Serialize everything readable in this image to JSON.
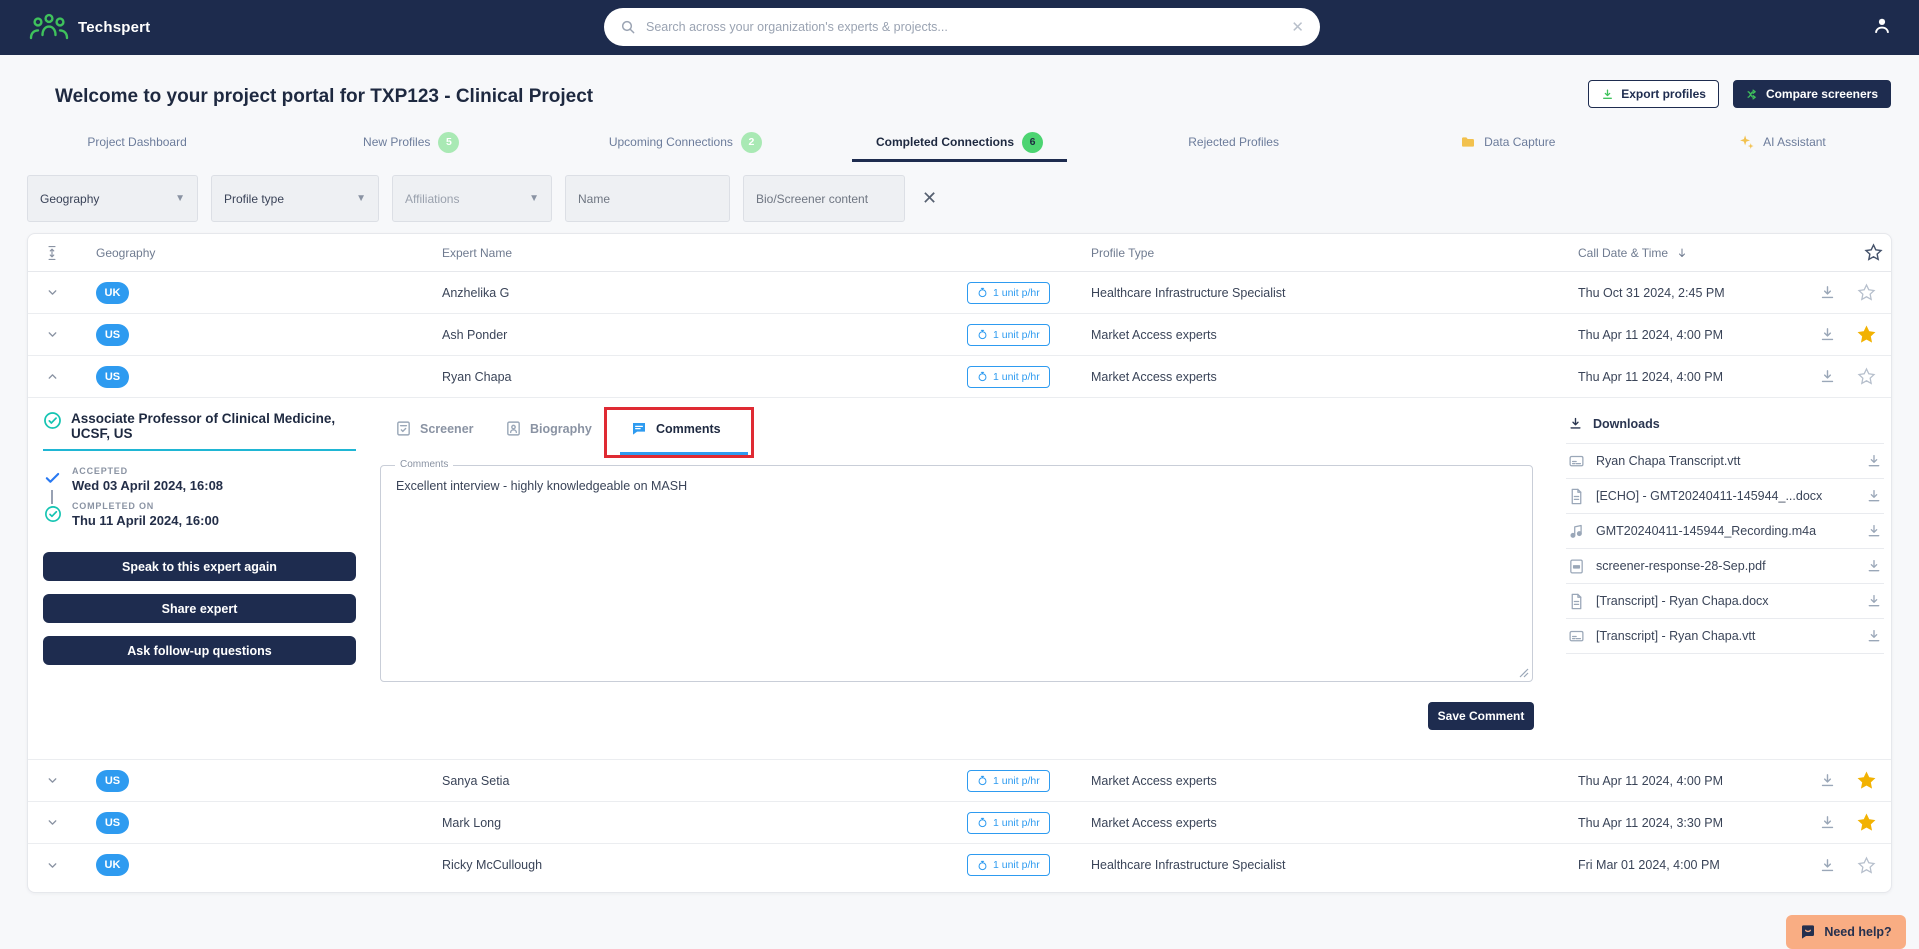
{
  "header": {
    "brand": "Techspert",
    "search_placeholder": "Search across your organization's experts & projects..."
  },
  "page": {
    "title": "Welcome to your project portal for TXP123 - Clinical Project",
    "export_button": "Export profiles",
    "compare_button": "Compare screeners"
  },
  "tabs": [
    {
      "label": "Project Dashboard",
      "badge": null,
      "badge_style": null,
      "icon": null,
      "active": false
    },
    {
      "label": "New Profiles",
      "badge": "5",
      "badge_style": "light",
      "icon": null,
      "active": false
    },
    {
      "label": "Upcoming Connections",
      "badge": "2",
      "badge_style": "light",
      "icon": null,
      "active": false
    },
    {
      "label": "Completed Connections",
      "badge": "6",
      "badge_style": "solid",
      "icon": null,
      "active": true
    },
    {
      "label": "Rejected Profiles",
      "badge": null,
      "badge_style": null,
      "icon": null,
      "active": false
    },
    {
      "label": "Data Capture",
      "badge": null,
      "badge_style": null,
      "icon": "folder-icon",
      "active": false
    },
    {
      "label": "AI Assistant",
      "badge": null,
      "badge_style": null,
      "icon": "sparkle-icon",
      "active": false
    }
  ],
  "filters": {
    "geography_value": "Geography",
    "profile_type_value": "Profile type",
    "affiliations_placeholder": "Affiliations",
    "name_placeholder": "Name",
    "bio_placeholder": "Bio/Screener content"
  },
  "table": {
    "columns": [
      "Geography",
      "Expert Name",
      "Profile Type",
      "Call Date & Time"
    ],
    "rows": [
      {
        "geo": "UK",
        "name": "Anzhelika G",
        "rate": "1 unit p/hr",
        "profile_type": "Healthcare Infrastructure Specialist",
        "datetime": "Thu Oct 31 2024, 2:45 PM",
        "starred": false,
        "expanded": false
      },
      {
        "geo": "US",
        "name": "Ash Ponder",
        "rate": "1 unit p/hr",
        "profile_type": "Market Access experts",
        "datetime": "Thu Apr 11 2024, 4:00 PM",
        "starred": true,
        "expanded": false
      },
      {
        "geo": "US",
        "name": "Ryan Chapa",
        "rate": "1 unit p/hr",
        "profile_type": "Market Access experts",
        "datetime": "Thu Apr 11 2024, 4:00 PM",
        "starred": false,
        "expanded": true
      },
      {
        "geo": "US",
        "name": "Sanya Setia",
        "rate": "1 unit p/hr",
        "profile_type": "Market Access experts",
        "datetime": "Thu Apr 11 2024, 4:00 PM",
        "starred": true,
        "expanded": false
      },
      {
        "geo": "US",
        "name": "Mark Long",
        "rate": "1 unit p/hr",
        "profile_type": "Market Access experts",
        "datetime": "Thu Apr 11 2024, 3:30 PM",
        "starred": true,
        "expanded": false
      },
      {
        "geo": "UK",
        "name": "Ricky McCullough",
        "rate": "1 unit p/hr",
        "profile_type": "Healthcare Infrastructure Specialist",
        "datetime": "Fri Mar 01 2024, 4:00 PM",
        "starred": false,
        "expanded": false
      }
    ]
  },
  "detail": {
    "title": "Associate Professor of Clinical Medicine, UCSF, US",
    "accepted_label": "ACCEPTED",
    "accepted_date": "Wed 03 April 2024, 16:08",
    "completed_label": "COMPLETED ON",
    "completed_date": "Thu 11 April 2024, 16:00",
    "actions": [
      "Speak to this expert again",
      "Share expert",
      "Ask follow-up questions"
    ],
    "tabs": {
      "screener": "Screener",
      "biography": "Biography",
      "comments": "Comments"
    },
    "comments_label": "Comments",
    "comments_value": "Excellent interview - highly knowledgeable on MASH",
    "save_button": "Save Comment",
    "downloads_title": "Downloads",
    "downloads": [
      {
        "name": "Ryan Chapa Transcript.vtt",
        "type": "vtt"
      },
      {
        "name": "[ECHO] - GMT20240411-145944_...docx",
        "type": "docx"
      },
      {
        "name": "GMT20240411-145944_Recording.m4a",
        "type": "audio"
      },
      {
        "name": "screener-response-28-Sep.pdf",
        "type": "pdf"
      },
      {
        "name": "[Transcript] - Ryan Chapa.docx",
        "type": "docx"
      },
      {
        "name": "[Transcript] - Ryan Chapa.vtt",
        "type": "vtt"
      }
    ]
  },
  "help_button": "Need help?",
  "colors": {
    "navy": "#1e2c4f",
    "green": "#3fc25c",
    "blue": "#2e9bf0",
    "teal": "#14c4b2",
    "cyan_underline": "#1fb6d4",
    "gold_star": "#f2b202",
    "badge_light": "#a9e9b4",
    "badge_solid": "#4cd471",
    "annotation_red": "#df2a33",
    "help_peach": "#f9ad83"
  }
}
